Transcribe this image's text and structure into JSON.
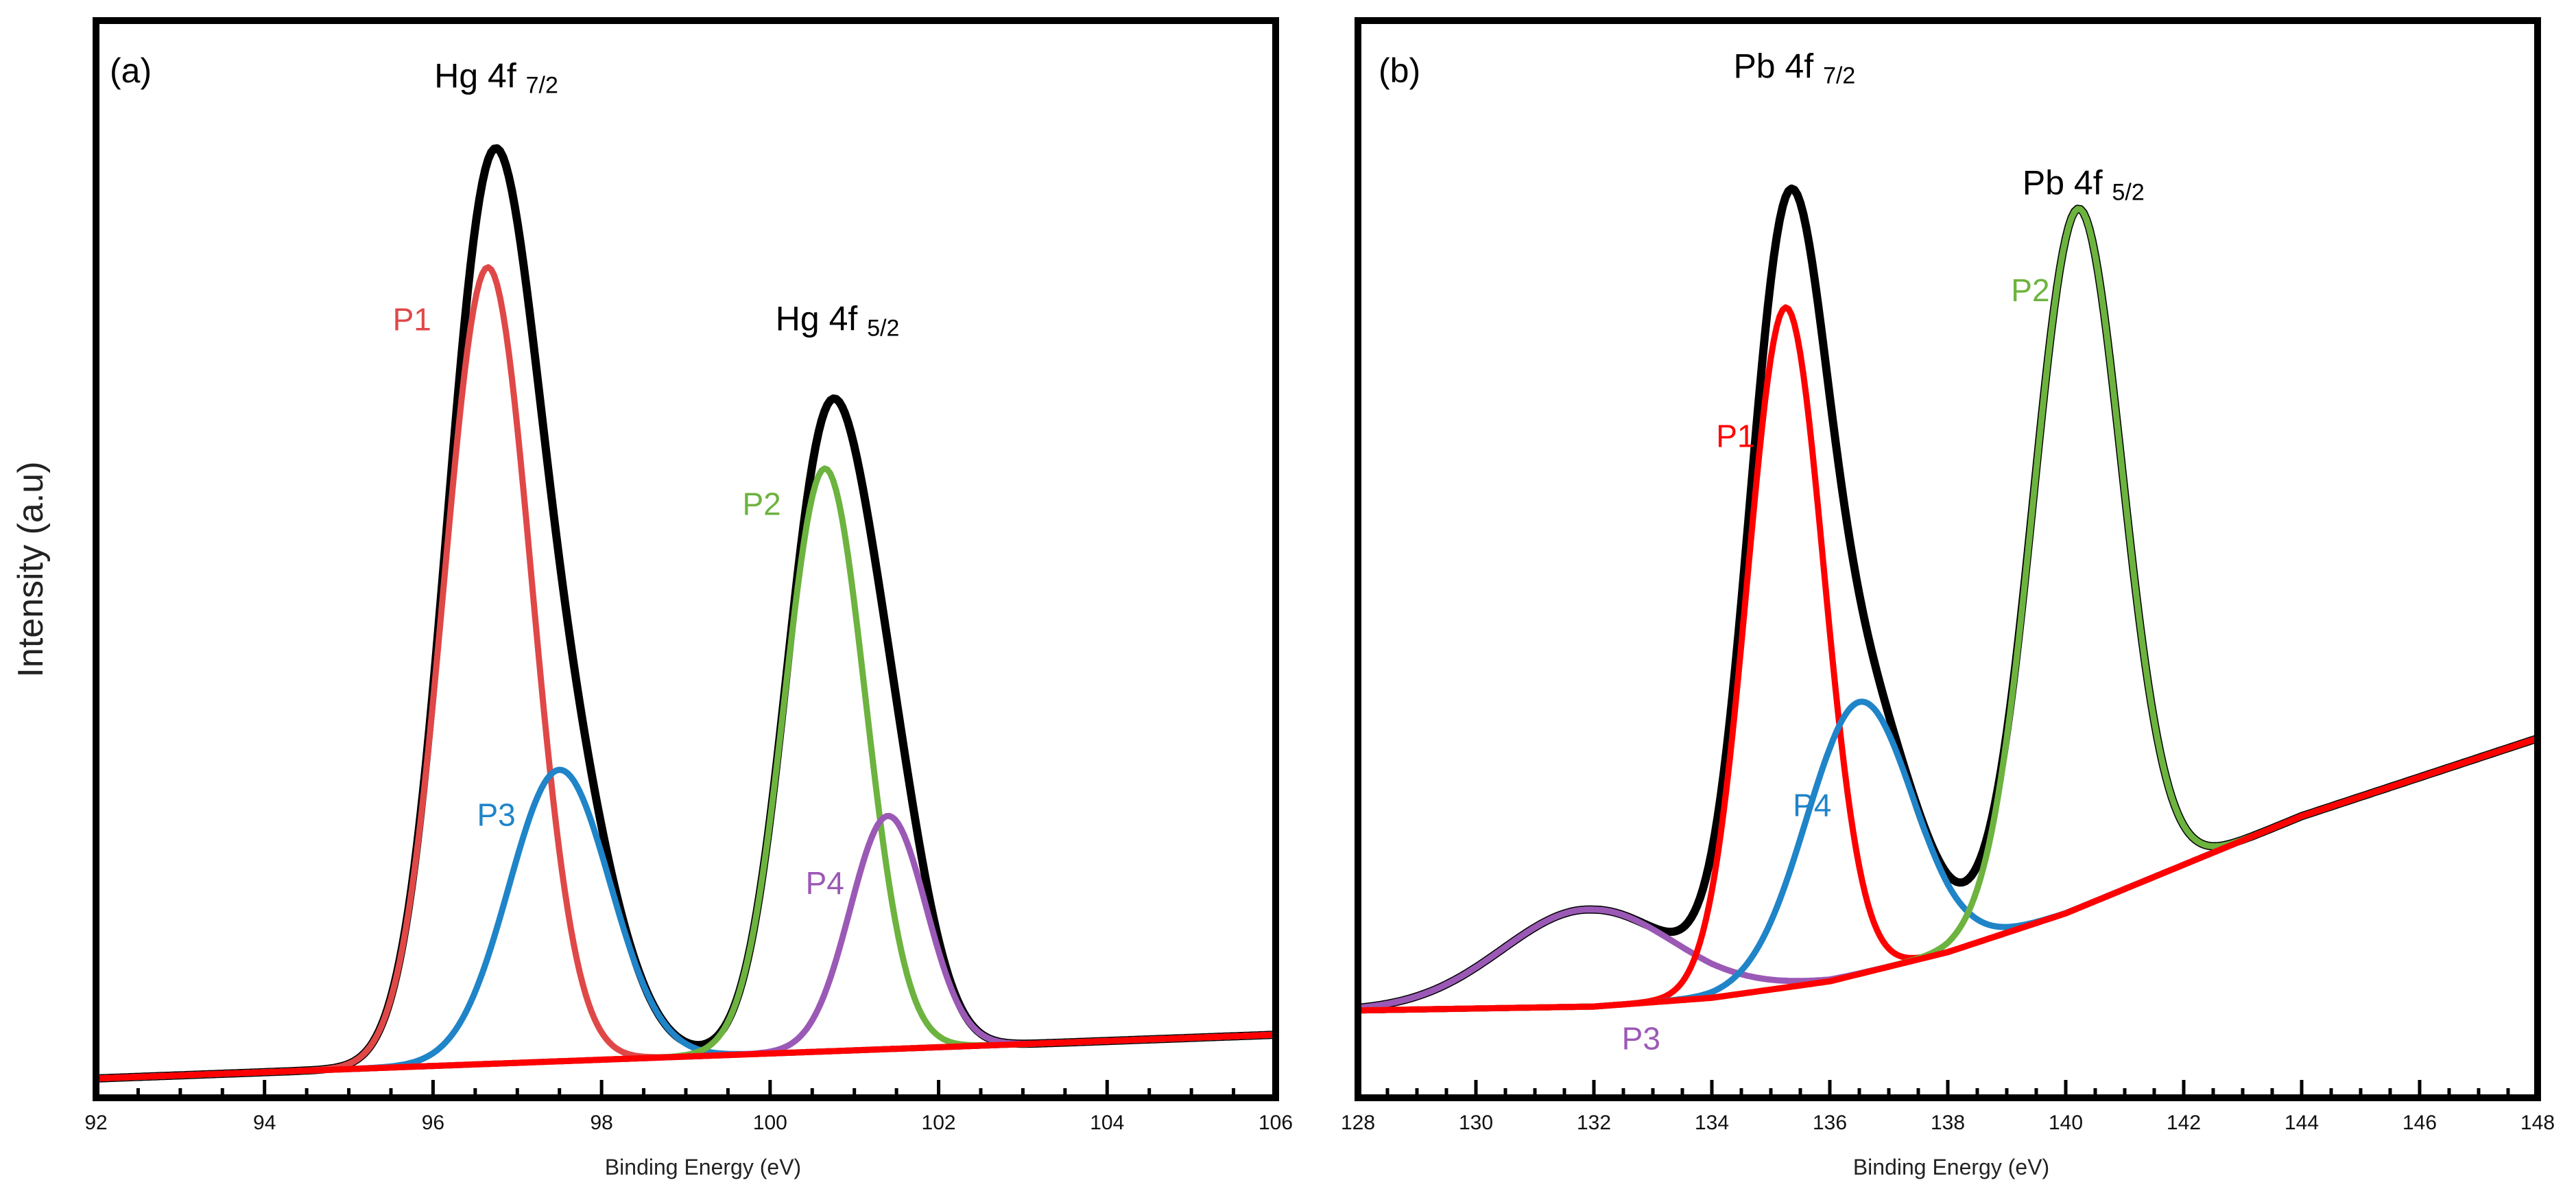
{
  "chart_data": [
    {
      "type": "line",
      "panel_label": "(a)",
      "title": "",
      "xlabel": "Binding Energy (eV)",
      "ylabel": "Intensity (a.u)",
      "xlim": [
        92,
        106
      ],
      "ylim": [
        0,
        1
      ],
      "xticks": [
        92,
        94,
        96,
        98,
        100,
        102,
        104,
        106
      ],
      "xtick_labels": [
        "92",
        "94",
        "96",
        "98",
        "100",
        "102",
        "104",
        "106"
      ],
      "grid": false,
      "annotations": [
        {
          "text": "Hg 4f",
          "sub": "7/2",
          "x": 96.75,
          "y": 1.03
        },
        {
          "text": "Hg 4f",
          "sub": "5/2",
          "x": 100.8,
          "y": 0.78
        }
      ],
      "background": {
        "name": "Background",
        "color": "#ff0000",
        "x": [
          92,
          106
        ],
        "y": [
          0.01,
          0.055
        ]
      },
      "components": [
        {
          "name": "P1",
          "label": "P1",
          "color": "#e04848",
          "center": 96.65,
          "height": 0.82,
          "sigma": 0.52,
          "label_pos": [
            95.75,
            0.78
          ]
        },
        {
          "name": "P3",
          "label": "P3",
          "color": "#1f84c8",
          "center": 97.5,
          "height": 0.3,
          "sigma": 0.6,
          "label_pos": [
            96.75,
            0.27
          ]
        },
        {
          "name": "P2",
          "label": "P2",
          "color": "#6db33f",
          "center": 100.65,
          "height": 0.6,
          "sigma": 0.48,
          "label_pos": [
            99.9,
            0.59
          ]
        },
        {
          "name": "P4",
          "label": "P4",
          "color": "#9b59b6",
          "center": 101.4,
          "height": 0.24,
          "sigma": 0.45,
          "label_pos": [
            100.65,
            0.2
          ]
        }
      ],
      "envelope": {
        "name": "Envelope",
        "color": "#000000"
      }
    },
    {
      "type": "line",
      "panel_label": "(b)",
      "title": "",
      "xlabel": "Binding Energy (eV)",
      "ylabel": "",
      "xlim": [
        128,
        148
      ],
      "ylim": [
        0,
        1
      ],
      "xticks": [
        128,
        130,
        132,
        134,
        136,
        138,
        140,
        142,
        144,
        146,
        148
      ],
      "xtick_labels": [
        "128",
        "130",
        "132",
        "134",
        "136",
        "138",
        "140",
        "142",
        "144",
        "146",
        "148"
      ],
      "grid": false,
      "annotations": [
        {
          "text": "Pb 4f",
          "sub": "7/2",
          "x": 135.4,
          "y": 1.04
        },
        {
          "text": "Pb 4f",
          "sub": "5/2",
          "x": 140.3,
          "y": 0.92
        }
      ],
      "background": {
        "name": "Background",
        "color": "#ff0000",
        "x": [
          128,
          132,
          134,
          136,
          138,
          140,
          142,
          144,
          146,
          148
        ],
        "y": [
          0.08,
          0.084,
          0.093,
          0.11,
          0.14,
          0.18,
          0.23,
          0.28,
          0.32,
          0.36
        ]
      },
      "components": [
        {
          "name": "P3",
          "label": "P3",
          "color": "#9b59b6",
          "center": 131.9,
          "height": 0.1,
          "sigma": 1.45,
          "label_pos": [
            132.8,
            0.04
          ]
        },
        {
          "name": "P1",
          "label": "P1",
          "color": "#ff0000",
          "center": 135.25,
          "height": 0.7,
          "sigma": 0.65,
          "label_pos": [
            134.4,
            0.66
          ]
        },
        {
          "name": "P4",
          "label": "P4",
          "color": "#1f84c8",
          "center": 136.5,
          "height": 0.28,
          "sigma": 0.9,
          "label_pos": [
            135.7,
            0.28
          ]
        },
        {
          "name": "P2",
          "label": "P2",
          "color": "#6db33f",
          "center": 140.2,
          "height": 0.72,
          "sigma": 0.75,
          "label_pos": [
            139.4,
            0.81
          ]
        }
      ],
      "envelope": {
        "name": "Envelope",
        "color": "#000000"
      }
    }
  ]
}
